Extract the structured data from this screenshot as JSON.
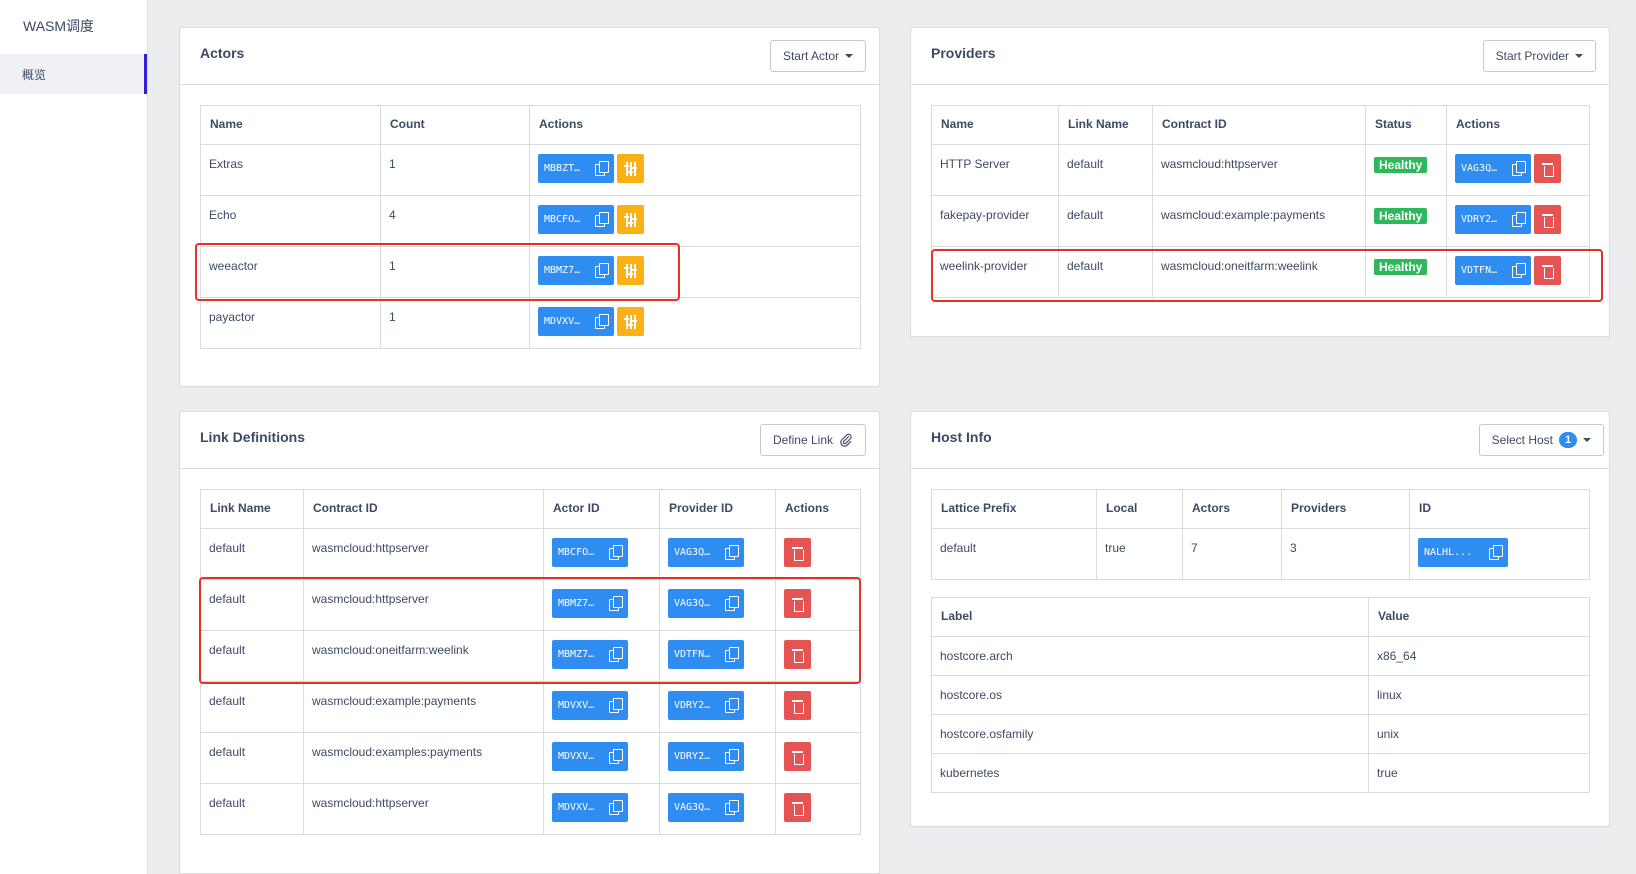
{
  "app": {
    "title": "WASM调度"
  },
  "sidebar": {
    "items": [
      {
        "label": "概览"
      }
    ]
  },
  "actors": {
    "title": "Actors",
    "start_button": "Start Actor",
    "columns": [
      "Name",
      "Count",
      "Actions"
    ],
    "rows": [
      {
        "name": "Extras",
        "count": "1",
        "id": "MBBZT…"
      },
      {
        "name": "Echo",
        "count": "4",
        "id": "MBCFO…"
      },
      {
        "name": "weeactor",
        "count": "1",
        "id": "MBMZ7…"
      },
      {
        "name": "payactor",
        "count": "1",
        "id": "MDVXV…"
      }
    ]
  },
  "providers": {
    "title": "Providers",
    "start_button": "Start Provider",
    "columns": [
      "Name",
      "Link Name",
      "Contract ID",
      "Status",
      "Actions"
    ],
    "rows": [
      {
        "name": "HTTP Server",
        "link": "default",
        "contract": "wasmcloud:httpserver",
        "status": "Healthy",
        "id": "VAG3Q…"
      },
      {
        "name": "fakepay-provider",
        "link": "default",
        "contract": "wasmcloud:example:payments",
        "status": "Healthy",
        "id": "VDRY2…"
      },
      {
        "name": "weelink-provider",
        "link": "default",
        "contract": "wasmcloud:oneitfarm:weelink",
        "status": "Healthy",
        "id": "VDTFN…"
      }
    ]
  },
  "links": {
    "title": "Link Definitions",
    "define_button": "Define Link",
    "columns": [
      "Link Name",
      "Contract ID",
      "Actor ID",
      "Provider ID",
      "Actions"
    ],
    "rows": [
      {
        "link": "default",
        "contract": "wasmcloud:httpserver",
        "actor": "MBCFO…",
        "provider": "VAG3Q…"
      },
      {
        "link": "default",
        "contract": "wasmcloud:httpserver",
        "actor": "MBMZ7…",
        "provider": "VAG3Q…"
      },
      {
        "link": "default",
        "contract": "wasmcloud:oneitfarm:weelink",
        "actor": "MBMZ7…",
        "provider": "VDTFN…"
      },
      {
        "link": "default",
        "contract": "wasmcloud:example:payments",
        "actor": "MDVXV…",
        "provider": "VDRY2…"
      },
      {
        "link": "default",
        "contract": "wasmcloud:examples:payments",
        "actor": "MDVXV…",
        "provider": "VDRY2…"
      },
      {
        "link": "default",
        "contract": "wasmcloud:httpserver",
        "actor": "MDVXV…",
        "provider": "VAG3Q…"
      }
    ]
  },
  "host": {
    "title": "Host Info",
    "select_button": "Select Host",
    "host_count": "1",
    "columns": [
      "Lattice Prefix",
      "Local",
      "Actors",
      "Providers",
      "ID"
    ],
    "row": {
      "prefix": "default",
      "local": "true",
      "actors": "7",
      "providers": "3",
      "id": "NALHL..."
    },
    "label_columns": [
      "Label",
      "Value"
    ],
    "labels": [
      {
        "label": "hostcore.arch",
        "value": "x86_64"
      },
      {
        "label": "hostcore.os",
        "value": "linux"
      },
      {
        "label": "hostcore.osfamily",
        "value": "unix"
      },
      {
        "label": "kubernetes",
        "value": "true"
      }
    ]
  },
  "colors": {
    "primary": "#2f8cf0",
    "warning": "#f9b115",
    "danger": "#e55353",
    "success": "#2eb85c",
    "annotation": "#e8302b"
  },
  "icons": [
    "copy-icon",
    "sliders-icon",
    "trash-icon",
    "paperclip-icon",
    "caret-down-icon"
  ]
}
